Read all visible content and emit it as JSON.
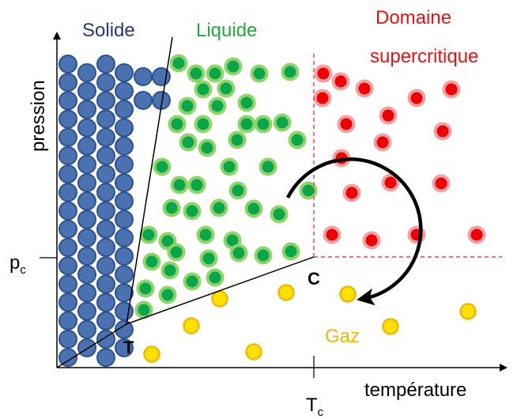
{
  "labels": {
    "solid": "Solide",
    "liquid": "Liquide",
    "supercritical_line1": "Domaine",
    "supercritical_line2": "supercritique",
    "gas": "Gaz",
    "y_axis": "pression",
    "x_axis": "température",
    "pc_base": "p",
    "pc_sub": "c",
    "tc_base": "T",
    "tc_sub": "c",
    "triple_point": "T",
    "critical_point": "C"
  },
  "colors": {
    "solid_fill": "#4a72b0",
    "solid_stroke": "#2f528f",
    "solid_text": "#1f3a7a",
    "liquid_fill": "#0aa64a",
    "liquid_stroke": "#8fd46a",
    "liquid_text": "#1faa3a",
    "super_fill": "#f00000",
    "super_stroke": "#f0a0a0",
    "super_text": "#ee1111",
    "gas_fill": "#ffe000",
    "gas_stroke": "#f0b800",
    "gas_text": "#f2b800",
    "axis": "#000000",
    "boundary": "#e02020"
  },
  "icons": {
    "cycle_arrow": "curved-arrow-icon"
  }
}
